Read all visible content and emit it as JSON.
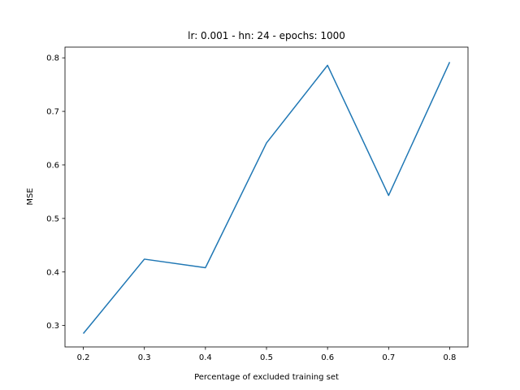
{
  "chart_data": {
    "type": "line",
    "title": "lr: 0.001 - hn: 24 - epochs: 1000",
    "xlabel": "Percentage of excluded training set",
    "ylabel": "MSE",
    "xlim": [
      0.17,
      0.83
    ],
    "ylim": [
      0.26,
      0.82
    ],
    "xticks": [
      "0.2",
      "0.3",
      "0.4",
      "0.5",
      "0.6",
      "0.7",
      "0.8"
    ],
    "yticks": [
      "0.3",
      "0.4",
      "0.5",
      "0.6",
      "0.7",
      "0.8"
    ],
    "grid": false,
    "series": [
      {
        "color": "#1f77b4",
        "x": [
          0.2,
          0.3,
          0.4,
          0.5,
          0.6,
          0.7,
          0.8
        ],
        "y": [
          0.285,
          0.424,
          0.408,
          0.641,
          0.786,
          0.543,
          0.792
        ]
      }
    ]
  }
}
